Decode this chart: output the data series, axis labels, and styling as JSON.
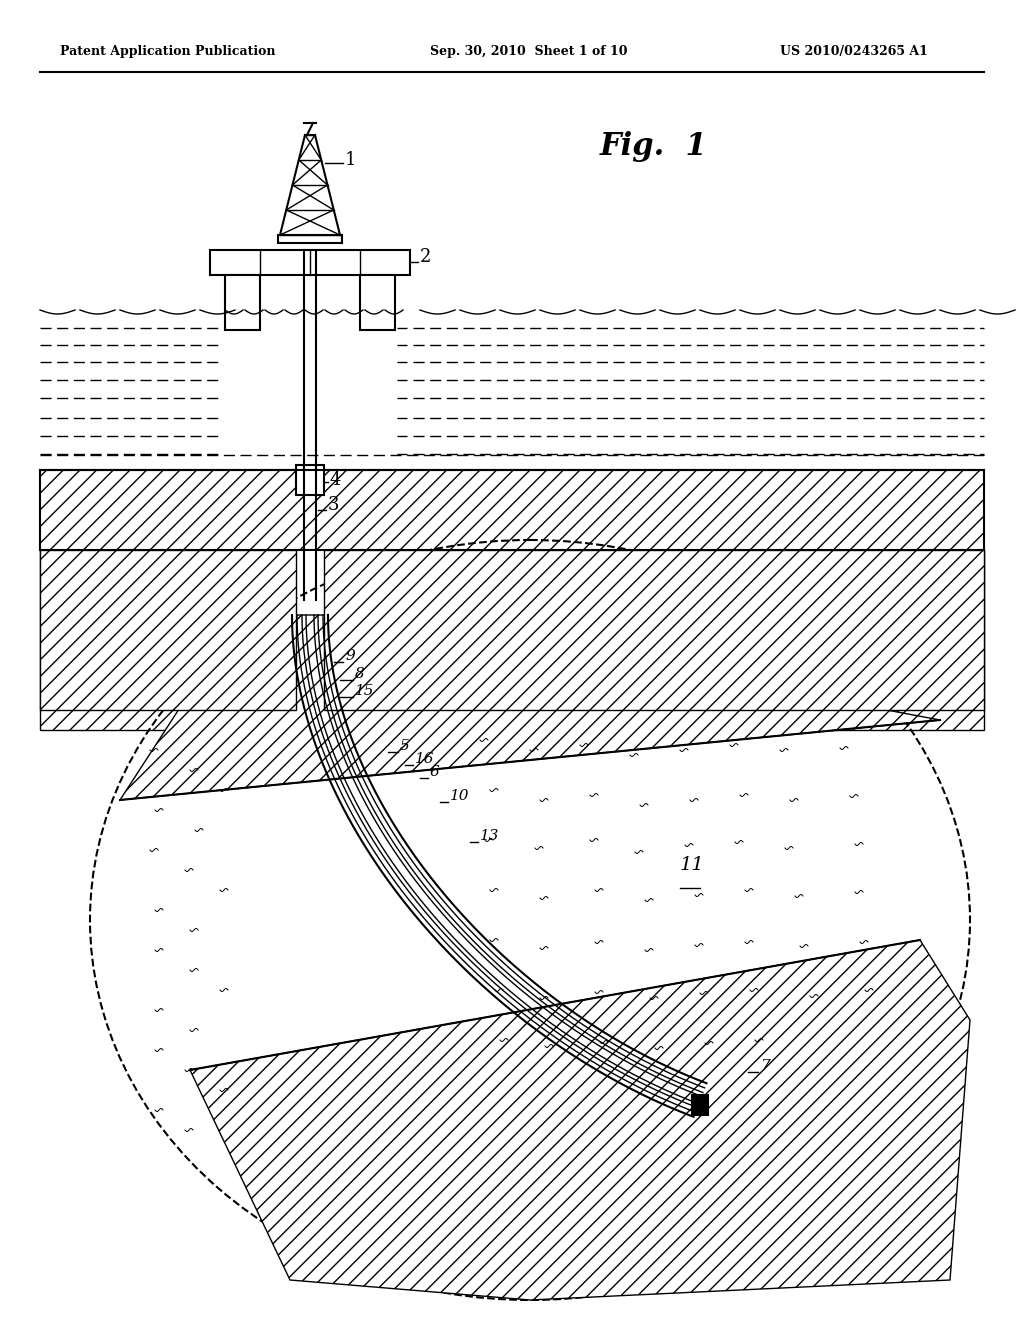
{
  "bg_color": "#ffffff",
  "line_color": "#000000",
  "hatch_color": "#000000",
  "title": "Fig.  1",
  "header_left": "Patent Application Publication",
  "header_mid": "Sep. 30, 2010  Sheet 1 of 10",
  "header_right": "US 2010/0243265 A1",
  "fig_width": 10.24,
  "fig_height": 13.2
}
